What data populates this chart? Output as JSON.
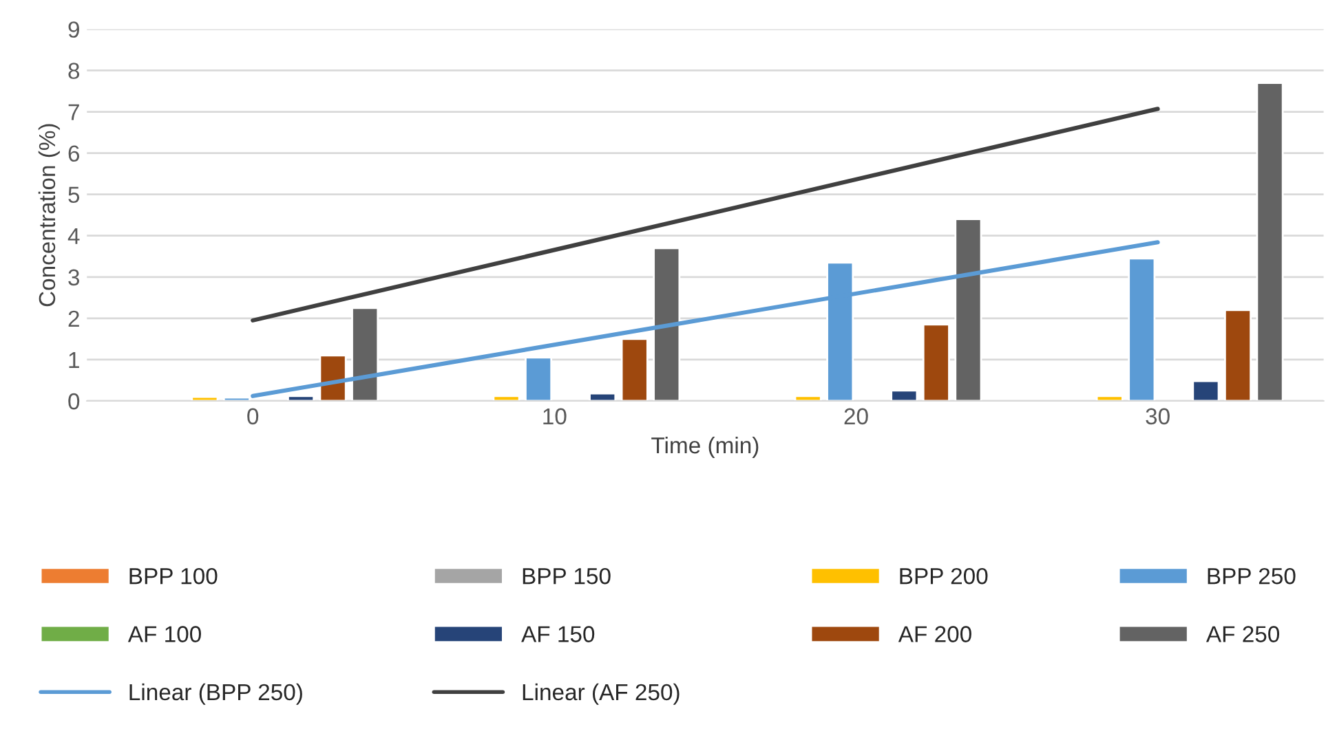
{
  "chart_data": {
    "type": "bar",
    "xlabel": "Time (min)",
    "ylabel": "Concentration (%)",
    "categories": [
      "0",
      "10",
      "20",
      "30"
    ],
    "series": [
      {
        "name": "BPP 100",
        "color": "#ed7d31",
        "values": [
          null,
          null,
          null,
          null
        ]
      },
      {
        "name": "BPP 150",
        "color": "#a5a5a5",
        "values": [
          null,
          null,
          null,
          null
        ]
      },
      {
        "name": "BPP 200",
        "color": "#ffc000",
        "values": [
          0.1,
          0.12,
          0.12,
          0.12
        ]
      },
      {
        "name": "BPP 250",
        "color": "#5b9bd5",
        "values": [
          0.08,
          1.05,
          3.35,
          3.45
        ]
      },
      {
        "name": "AF 100",
        "color": "#70ad47",
        "values": [
          null,
          null,
          null,
          null
        ]
      },
      {
        "name": "AF 150",
        "color": "#264478",
        "values": [
          0.12,
          0.18,
          0.25,
          0.48
        ]
      },
      {
        "name": "AF 200",
        "color": "#9e480e",
        "values": [
          1.1,
          1.5,
          1.85,
          2.2
        ]
      },
      {
        "name": "AF 250",
        "color": "#636363",
        "values": [
          2.25,
          3.7,
          4.4,
          7.7
        ]
      },
      {
        "name": "Linear (BPP 250)",
        "type": "line",
        "color": "#5b9bd5",
        "x": [
          "0",
          "30"
        ],
        "values": [
          0.12,
          3.84
        ]
      },
      {
        "name": "Linear (AF 250)",
        "type": "line",
        "color": "#404040",
        "x": [
          "0",
          "30"
        ],
        "values": [
          1.95,
          7.07
        ]
      }
    ],
    "ylim": [
      0,
      9
    ],
    "yticks": [
      0,
      1,
      2,
      3,
      4,
      5,
      6,
      7,
      8,
      9
    ],
    "grid": "y",
    "legend": "bottom"
  }
}
